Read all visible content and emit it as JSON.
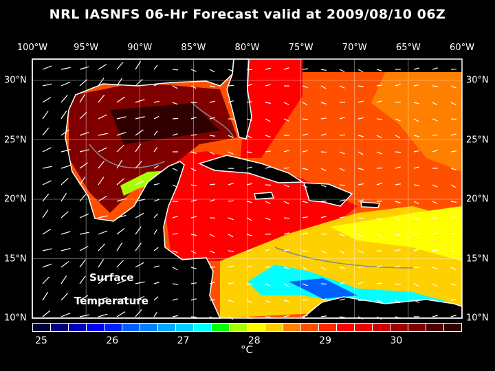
{
  "title": "NRL IASNFS  06-Hr Forecast valid at 2009/08/10 06Z",
  "map": {
    "lon_labels": [
      "100°W",
      "95°W",
      "90°W",
      "85°W",
      "80°W",
      "75°W",
      "70°W",
      "65°W",
      "60°W"
    ],
    "lon_values": [
      -100,
      -95,
      -90,
      -85,
      -80,
      -75,
      -70,
      -65,
      -60
    ],
    "lat_labels": [
      "10°N",
      "15°N",
      "20°N",
      "25°N",
      "30°N"
    ],
    "lat_values": [
      10,
      15,
      20,
      25,
      30
    ],
    "annotation_line1": "Surface",
    "annotation_line2": "Temperature",
    "land_color": "#000000",
    "coastline_color": "#ffffff",
    "grid_color": "#ffffff",
    "wind_vector_color": "#ffffff",
    "isobath_color": "#888888"
  },
  "colorbar": {
    "tick_labels": [
      "25",
      "26",
      "27",
      "28",
      "29",
      "30"
    ],
    "unit": "°C",
    "range": [
      25,
      30.8
    ],
    "colors": [
      "#000040",
      "#000080",
      "#0000c0",
      "#0000ff",
      "#0020ff",
      "#0060ff",
      "#0080ff",
      "#00a8ff",
      "#00d0ff",
      "#00ffff",
      "#00ff00",
      "#a8ff00",
      "#ffff00",
      "#ffd000",
      "#ff8000",
      "#ff5000",
      "#ff2800",
      "#ff0000",
      "#f00000",
      "#d00000",
      "#a00000",
      "#800000",
      "#500000",
      "#300000"
    ]
  }
}
